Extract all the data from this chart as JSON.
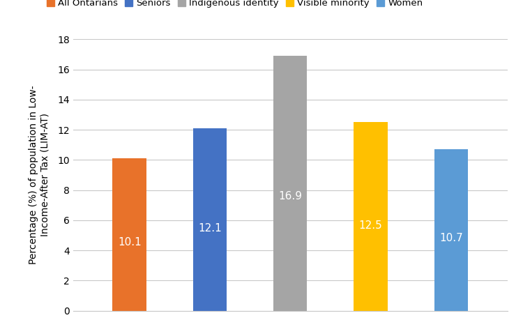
{
  "categories": [
    "All Ontarians",
    "Seniors",
    "Indigenous identity",
    "Visible minority",
    "Women"
  ],
  "values": [
    10.1,
    12.1,
    16.9,
    12.5,
    10.7
  ],
  "bar_colors": [
    "#E8722A",
    "#4472C4",
    "#A5A5A5",
    "#FFC000",
    "#5B9BD5"
  ],
  "label_colors": [
    "white",
    "white",
    "white",
    "white",
    "white"
  ],
  "ylabel": "Percentage (%) of population in Low-\nIncome-After Tax (LIM-AT)",
  "ylim": [
    0,
    18
  ],
  "yticks": [
    0,
    2,
    4,
    6,
    8,
    10,
    12,
    14,
    16,
    18
  ],
  "bar_label_fontsize": 11,
  "legend_fontsize": 9.5,
  "ylabel_fontsize": 10,
  "background_color": "#ffffff",
  "grid_color": "#c8c8c8",
  "bar_width": 0.42
}
